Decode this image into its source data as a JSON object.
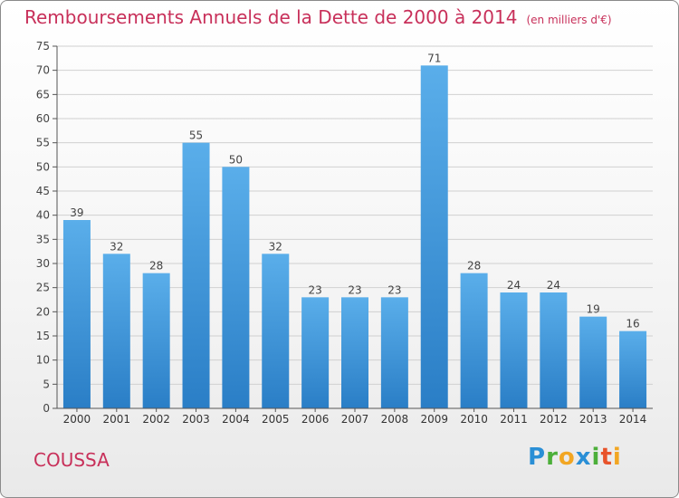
{
  "page": {
    "commune": "COUSSA",
    "logo_text": "Proxiti",
    "colors": {
      "title": "#c8305a",
      "bar_top": "#5aaeea",
      "bar_bottom": "#2a7ec6",
      "axis": "#555555",
      "grid": "#d0d0d0"
    }
  },
  "chart_data": {
    "type": "bar",
    "title": "Remboursements Annuels de la Dette de 2000 à 2014",
    "subtitle": "(en milliers d'€)",
    "xlabel": "",
    "ylabel": "",
    "categories": [
      "2000",
      "2001",
      "2002",
      "2003",
      "2004",
      "2005",
      "2006",
      "2007",
      "2008",
      "2009",
      "2010",
      "2011",
      "2012",
      "2013",
      "2014"
    ],
    "values": [
      39,
      32,
      28,
      55,
      50,
      32,
      23,
      23,
      23,
      71,
      28,
      24,
      24,
      19,
      16
    ],
    "ylim": [
      0,
      75
    ],
    "yticks": [
      0,
      5,
      10,
      15,
      20,
      25,
      30,
      35,
      40,
      45,
      50,
      55,
      60,
      65,
      70,
      75
    ],
    "grid": true,
    "data_labels": true
  }
}
